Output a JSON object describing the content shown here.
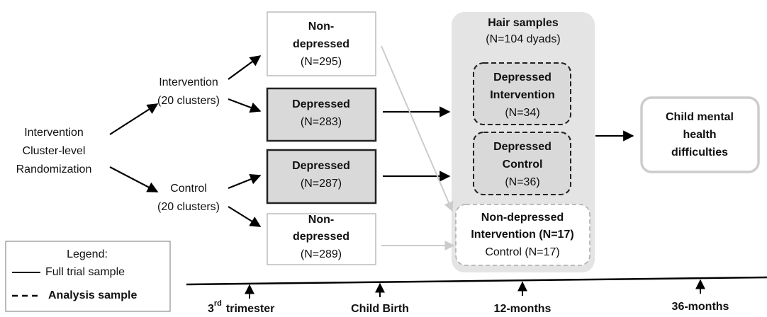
{
  "randomization": [
    "Intervention",
    "Cluster-level",
    "Randomization"
  ],
  "arms": [
    {
      "name": "Intervention",
      "clusters": "(20 clusters)"
    },
    {
      "name": "Control",
      "clusters": "(20 clusters)"
    }
  ],
  "groups": [
    {
      "label": [
        "Non-",
        "depressed"
      ],
      "count": "(N=295)"
    },
    {
      "label": [
        "Depressed"
      ],
      "count": "(N=283)"
    },
    {
      "label": [
        "Depressed"
      ],
      "count": "(N=287)"
    },
    {
      "label": [
        "Non-",
        "depressed"
      ],
      "count": "(N=289)"
    }
  ],
  "hair": {
    "title": "Hair samples",
    "count": "(N=104 dyads)",
    "subgroups": [
      {
        "label": [
          "Depressed",
          "Intervention"
        ],
        "count": "(N=34)"
      },
      {
        "label": [
          "Depressed",
          "Control"
        ],
        "count": "(N=36)"
      },
      {
        "label": [
          "Non-depressed",
          "Intervention (N=17)"
        ],
        "count": "Control (N=17)"
      }
    ]
  },
  "outcome": [
    "Child mental",
    "health",
    "difficulties"
  ],
  "legend": {
    "title": "Legend:",
    "solid": "Full trial sample",
    "dashed": "Analysis sample"
  },
  "timeline": [
    {
      "number": "3",
      "suffix": "rd",
      "label": "trimester"
    },
    {
      "label": "Child Birth"
    },
    {
      "label": "12-months"
    },
    {
      "label": "36-months"
    }
  ]
}
